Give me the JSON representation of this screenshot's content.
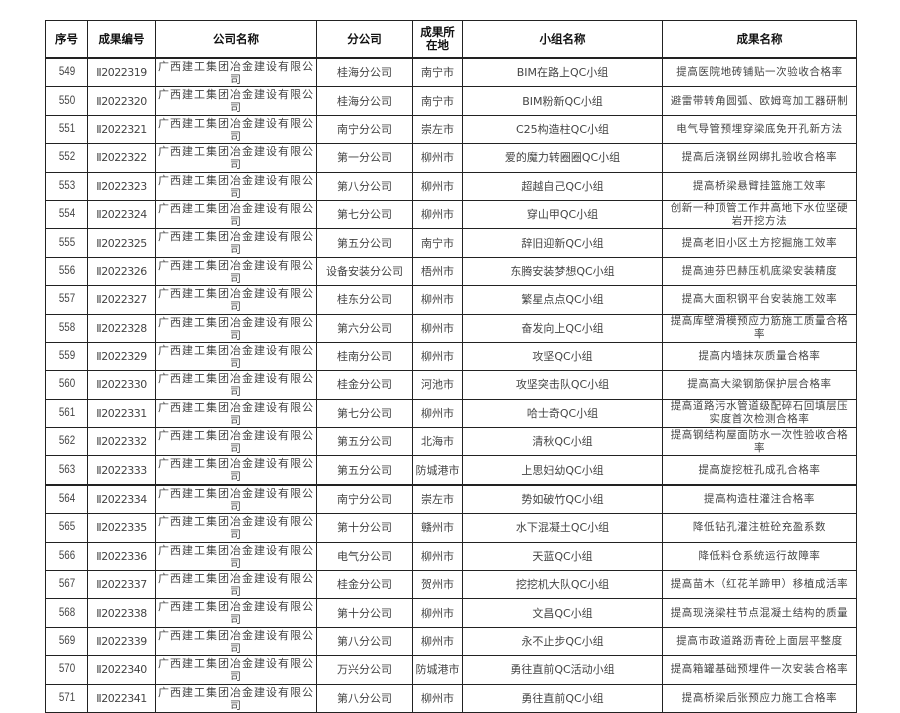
{
  "headers": [
    "序号",
    "成果编号",
    "公司名称",
    "分公司",
    "成果所在地",
    "小组名称",
    "成果名称"
  ],
  "rows": [
    [
      "549",
      "Ⅱ2022319",
      "广西建工集团冶金建设有限公司",
      "桂海分公司",
      "南宁市",
      "BIM在路上QC小组",
      "提高医院地砖铺贴一次验收合格率"
    ],
    [
      "550",
      "Ⅱ2022320",
      "广西建工集团冶金建设有限公司",
      "桂海分公司",
      "南宁市",
      "BIM粉新QC小组",
      "避雷带转角圆弧、欧姆弯加工器研制"
    ],
    [
      "551",
      "Ⅱ2022321",
      "广西建工集团冶金建设有限公司",
      "南宁分公司",
      "崇左市",
      "C25构造柱QC小组",
      "电气导管预埋穿梁底免开孔新方法"
    ],
    [
      "552",
      "Ⅱ2022322",
      "广西建工集团冶金建设有限公司",
      "第一分公司",
      "柳州市",
      "爱的魔力转圈圈QC小组",
      "提高后浇钢丝网绑扎验收合格率"
    ],
    [
      "553",
      "Ⅱ2022323",
      "广西建工集团冶金建设有限公司",
      "第八分公司",
      "柳州市",
      "超越自己QC小组",
      "提高桥梁悬臂挂篮施工效率"
    ],
    [
      "554",
      "Ⅱ2022324",
      "广西建工集团冶金建设有限公司",
      "第七分公司",
      "柳州市",
      "穿山甲QC小组",
      "创新一种顶管工作井高地下水位坚硬岩开挖方法"
    ],
    [
      "555",
      "Ⅱ2022325",
      "广西建工集团冶金建设有限公司",
      "第五分公司",
      "南宁市",
      "辞旧迎新QC小组",
      "提高老旧小区土方挖掘施工效率"
    ],
    [
      "556",
      "Ⅱ2022326",
      "广西建工集团冶金建设有限公司",
      "设备安装分公司",
      "梧州市",
      "东腾安装梦想QC小组",
      "提高迪芬巴赫压机底梁安装精度"
    ],
    [
      "557",
      "Ⅱ2022327",
      "广西建工集团冶金建设有限公司",
      "桂东分公司",
      "柳州市",
      "繁星点点QC小组",
      "提高大面积钢平台安装施工效率"
    ],
    [
      "558",
      "Ⅱ2022328",
      "广西建工集团冶金建设有限公司",
      "第六分公司",
      "柳州市",
      "奋发向上QC小组",
      "提高库壁滑模预应力筋施工质量合格率"
    ],
    [
      "559",
      "Ⅱ2022329",
      "广西建工集团冶金建设有限公司",
      "桂南分公司",
      "柳州市",
      "攻坚QC小组",
      "提高内墙抹灰质量合格率"
    ],
    [
      "560",
      "Ⅱ2022330",
      "广西建工集团冶金建设有限公司",
      "桂金分公司",
      "河池市",
      "攻坚突击队QC小组",
      "提高高大梁钢筋保护层合格率"
    ],
    [
      "561",
      "Ⅱ2022331",
      "广西建工集团冶金建设有限公司",
      "第七分公司",
      "柳州市",
      "哈士奇QC小组",
      "提高道路污水管道级配碎石回填层压实度首次检测合格率"
    ],
    [
      "562",
      "Ⅱ2022332",
      "广西建工集团冶金建设有限公司",
      "第五分公司",
      "北海市",
      "清秋QC小组",
      "提高钢结构屋面防水一次性验收合格率"
    ],
    [
      "563",
      "Ⅱ2022333",
      "广西建工集团冶金建设有限公司",
      "第五分公司",
      "防城港市",
      "上思妇幼QC小组",
      "提高旋挖桩孔成孔合格率"
    ],
    [
      "564",
      "Ⅱ2022334",
      "广西建工集团冶金建设有限公司",
      "南宁分公司",
      "崇左市",
      "势如破竹QC小组",
      "提高构造柱灌注合格率"
    ],
    [
      "565",
      "Ⅱ2022335",
      "广西建工集团冶金建设有限公司",
      "第十分公司",
      "赣州市",
      "水下混凝土QC小组",
      "降低钻孔灌注桩砼充盈系数"
    ],
    [
      "566",
      "Ⅱ2022336",
      "广西建工集团冶金建设有限公司",
      "电气分公司",
      "柳州市",
      "天蓝QC小组",
      "降低料仓系统运行故障率"
    ],
    [
      "567",
      "Ⅱ2022337",
      "广西建工集团冶金建设有限公司",
      "桂金分公司",
      "贺州市",
      "挖挖机大队QC小组",
      "提高苗木（红花羊蹄甲）移植成活率"
    ],
    [
      "568",
      "Ⅱ2022338",
      "广西建工集团冶金建设有限公司",
      "第十分公司",
      "柳州市",
      "文昌QC小组",
      "提高现浇梁柱节点混凝土结构的质量"
    ],
    [
      "569",
      "Ⅱ2022339",
      "广西建工集团冶金建设有限公司",
      "第八分公司",
      "柳州市",
      "永不止步QC小组",
      "提高市政道路沥青砼上面层平整度"
    ],
    [
      "570",
      "Ⅱ2022340",
      "广西建工集团冶金建设有限公司",
      "万兴分公司",
      "防城港市",
      "勇往直前QC活动小组",
      "提高箱罐基础预埋件一次安装合格率"
    ],
    [
      "571",
      "Ⅱ2022341",
      "广西建工集团冶金建设有限公司",
      "第八分公司",
      "柳州市",
      "勇往直前QC小组",
      "提高桥梁后张预应力施工合格率"
    ]
  ]
}
